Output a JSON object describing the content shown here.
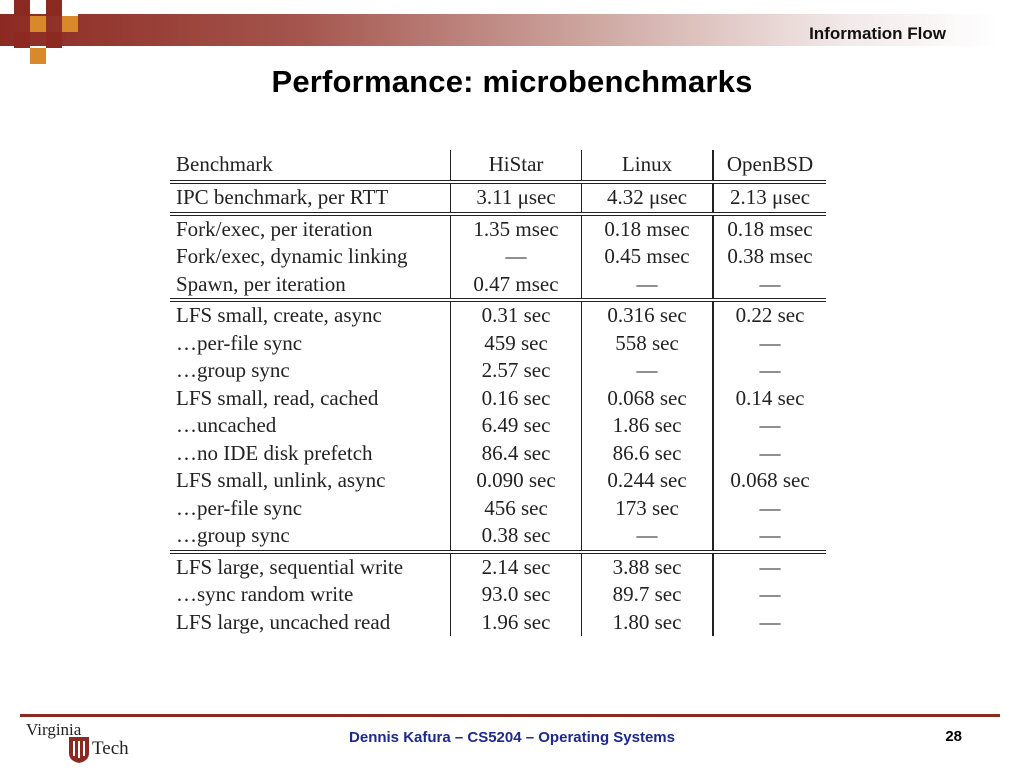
{
  "header": {
    "title": "Information Flow"
  },
  "slide": {
    "title": "Performance: microbenchmarks"
  },
  "table": {
    "columns": [
      "Benchmark",
      "HiStar",
      "Linux",
      "OpenBSD"
    ],
    "groups": [
      {
        "rows": [
          [
            "IPC benchmark, per RTT",
            "3.11 μsec",
            "4.32 μsec",
            "2.13 μsec"
          ]
        ]
      },
      {
        "rows": [
          [
            "Fork/exec, per iteration",
            "1.35 msec",
            "0.18 msec",
            "0.18 msec"
          ],
          [
            "Fork/exec, dynamic linking",
            "—",
            "0.45 msec",
            "0.38 msec"
          ],
          [
            "Spawn, per iteration",
            "0.47 msec",
            "—",
            "—"
          ]
        ]
      },
      {
        "rows": [
          [
            "LFS small, create, async",
            "0.31 sec",
            "0.316 sec",
            "0.22 sec"
          ],
          [
            "…per-file sync",
            "459 sec",
            "558 sec",
            "—"
          ],
          [
            "…group sync",
            "2.57 sec",
            "—",
            "—"
          ],
          [
            "LFS small, read, cached",
            "0.16 sec",
            "0.068 sec",
            "0.14 sec"
          ],
          [
            "…uncached",
            "6.49 sec",
            "1.86 sec",
            "—"
          ],
          [
            "…no IDE disk prefetch",
            "86.4 sec",
            "86.6 sec",
            "—"
          ],
          [
            "LFS small, unlink, async",
            "0.090 sec",
            "0.244 sec",
            "0.068 sec"
          ],
          [
            "…per-file sync",
            "456 sec",
            "173 sec",
            "—"
          ],
          [
            "…group sync",
            "0.38 sec",
            "—",
            "—"
          ]
        ]
      },
      {
        "rows": [
          [
            "LFS large, sequential write",
            "2.14 sec",
            "3.88 sec",
            "—"
          ],
          [
            "…sync random write",
            "93.0 sec",
            "89.7 sec",
            "—"
          ],
          [
            "LFS large, uncached read",
            "1.96 sec",
            "1.80 sec",
            "—"
          ]
        ]
      }
    ]
  },
  "footer": {
    "text": "Dennis Kafura – CS5204 – Operating Systems",
    "page": "28"
  },
  "logo": {
    "line1": "Virginia",
    "line2": "Tech"
  },
  "colors": {
    "maroon": "#8c2a22",
    "orange": "#d9882a",
    "footer_text": "#1c2a8c"
  }
}
